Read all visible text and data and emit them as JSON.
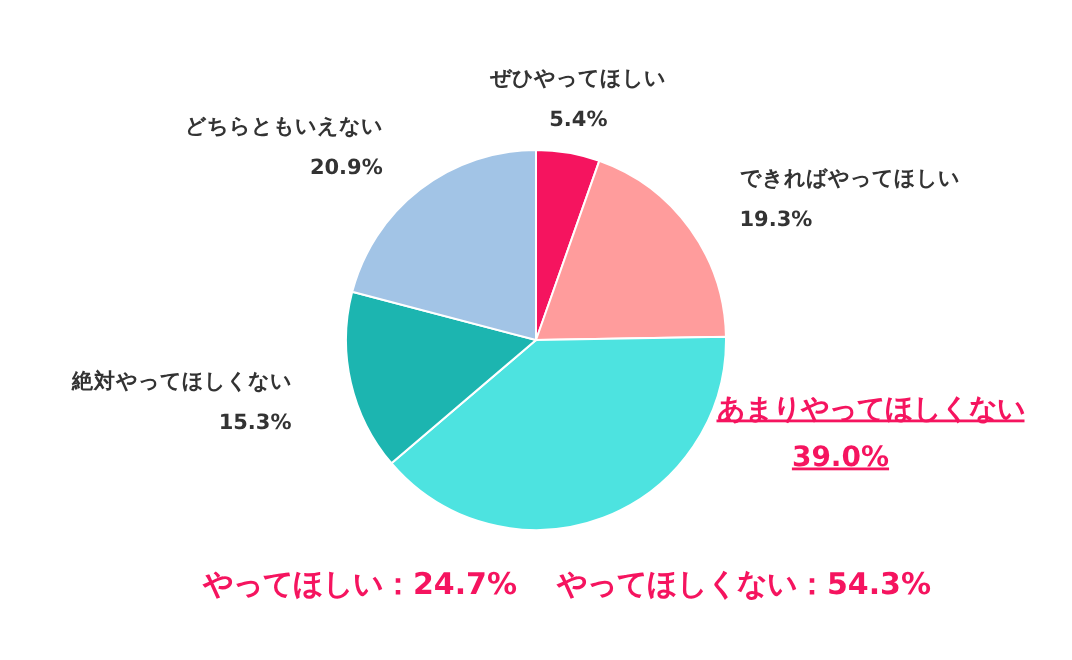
{
  "chart_data": {
    "type": "pie",
    "categories": [
      "ぜひやってほしい",
      "できればやってほしい",
      "あまりやってほしくない",
      "絶対やってほしくない",
      "どちらともいえない"
    ],
    "values": [
      5.4,
      19.3,
      39.0,
      15.3,
      20.9
    ],
    "colors": [
      "#f5145f",
      "#ff9c9c",
      "#4de3e0",
      "#1cb5b0",
      "#a2c4e6"
    ],
    "value_labels": [
      "5.4%",
      "19.3%",
      "39.0%",
      "15.3%",
      "20.9%"
    ],
    "annotations": [
      "やってほしい：24.7%",
      "やってほしくない：54.3%"
    ]
  }
}
